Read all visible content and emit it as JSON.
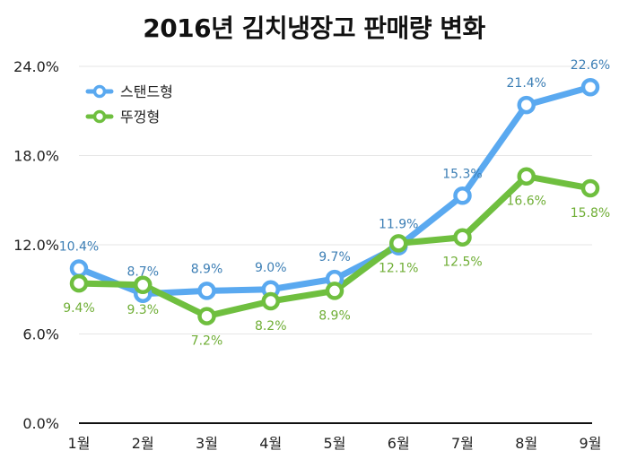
{
  "chart_data": {
    "type": "line",
    "title": "2016년 김치냉장고 판매량 변화",
    "xlabel": "",
    "ylabel": "",
    "categories": [
      "1월",
      "2월",
      "3월",
      "4월",
      "5월",
      "6월",
      "7월",
      "8월",
      "9월"
    ],
    "ylim": [
      0,
      24
    ],
    "yticks": [
      0,
      6,
      12,
      18,
      24
    ],
    "ytick_labels": [
      "0.0%",
      "6.0%",
      "12.0%",
      "18.0%",
      "24.0%"
    ],
    "grid": true,
    "legend_position": "top-left",
    "series": [
      {
        "name": "스탠드형",
        "color": "#5aa9f0",
        "label_color": "#3d7fb5",
        "values": [
          10.4,
          8.7,
          8.9,
          9.0,
          9.7,
          11.9,
          15.3,
          21.4,
          22.6
        ],
        "labels": [
          "10.4%",
          "8.7%",
          "8.9%",
          "9.0%",
          "9.7%",
          "11.9%",
          "15.3%",
          "21.4%",
          "22.6%"
        ]
      },
      {
        "name": "뚜껑형",
        "color": "#6fbf3f",
        "label_color": "#6fae35",
        "values": [
          9.4,
          9.3,
          7.2,
          8.2,
          8.9,
          12.1,
          12.5,
          16.6,
          15.8
        ],
        "labels": [
          "9.4%",
          "9.3%",
          "7.2%",
          "8.2%",
          "8.9%",
          "12.1%",
          "12.5%",
          "16.6%",
          "15.8%"
        ]
      }
    ]
  }
}
